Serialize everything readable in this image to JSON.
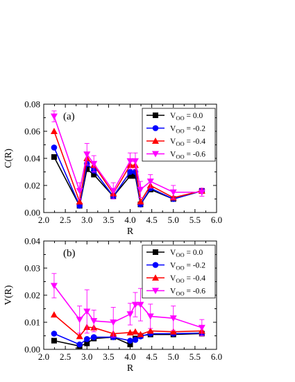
{
  "chart_data": [
    {
      "type": "line",
      "panel": "(a)",
      "xlabel": "R",
      "ylabel": "C(R)",
      "xlim": [
        2.0,
        6.0
      ],
      "ylim": [
        0.0,
        0.08
      ],
      "x_ticks": [
        "2.0",
        "2.5",
        "3.0",
        "3.5",
        "4.0",
        "4.5",
        "5.0",
        "5.5",
        "6.0"
      ],
      "y_ticks": [
        "0.00",
        "0.02",
        "0.04",
        "0.06",
        "0.08"
      ],
      "x": [
        2.24,
        2.83,
        3.0,
        3.16,
        3.61,
        4.0,
        4.12,
        4.24,
        4.47,
        5.0,
        5.66
      ],
      "legend_position": "top-right",
      "series": [
        {
          "name_main": "V",
          "name_sub": "OO",
          "name_rest": " = 0.0",
          "color": "#000000",
          "marker": "square",
          "values": [
            0.041,
            0.005,
            0.032,
            0.028,
            0.012,
            0.027,
            0.027,
            0.006,
            0.017,
            0.01,
            0.016
          ],
          "errors": [
            0,
            0,
            0,
            0,
            0,
            0,
            0,
            0,
            0,
            0,
            0
          ]
        },
        {
          "name_main": "V",
          "name_sub": "OO",
          "name_rest": " = -0.2",
          "color": "#0000ff",
          "marker": "circle",
          "values": [
            0.048,
            0.005,
            0.036,
            0.031,
            0.012,
            0.03,
            0.03,
            0.006,
            0.018,
            0.01,
            0.016
          ],
          "errors": [
            0,
            0,
            0,
            0,
            0,
            0,
            0,
            0,
            0,
            0,
            0
          ]
        },
        {
          "name_main": "V",
          "name_sub": "OO",
          "name_rest": " = -0.4",
          "color": "#ff0000",
          "marker": "triangle-up",
          "values": [
            0.06,
            0.008,
            0.04,
            0.035,
            0.014,
            0.035,
            0.035,
            0.008,
            0.02,
            0.011,
            0.016
          ],
          "errors": [
            0,
            0,
            0,
            0,
            0,
            0,
            0,
            0,
            0,
            0,
            0
          ]
        },
        {
          "name_main": "V",
          "name_sub": "OO",
          "name_rest": " = -0.6",
          "color": "#ff00ff",
          "marker": "triangle-down",
          "values": [
            0.071,
            0.016,
            0.043,
            0.036,
            0.016,
            0.038,
            0.038,
            0.017,
            0.023,
            0.015,
            0.015
          ],
          "errors": [
            0.004,
            0.006,
            0.008,
            0.006,
            0.006,
            0.006,
            0.006,
            0.006,
            0.005,
            0.005,
            0.003
          ]
        }
      ]
    },
    {
      "type": "line",
      "panel": "(b)",
      "xlabel": "R",
      "ylabel": "V(R)",
      "xlim": [
        2.0,
        6.0
      ],
      "ylim": [
        0.0,
        0.04
      ],
      "x_ticks": [
        "2.0",
        "2.5",
        "3.0",
        "3.5",
        "4.0",
        "4.5",
        "5.0",
        "5.5",
        "6.0"
      ],
      "y_ticks": [
        "0.00",
        "0.01",
        "0.02",
        "0.03",
        "0.04"
      ],
      "x": [
        2.24,
        2.83,
        3.0,
        3.16,
        3.61,
        4.0,
        4.12,
        4.24,
        4.47,
        5.0,
        5.66
      ],
      "legend_position": "top-right",
      "series": [
        {
          "name_main": "V",
          "name_sub": "OO",
          "name_rest": " = 0.0",
          "color": "#000000",
          "marker": "square",
          "values": [
            0.0032,
            0.0012,
            0.0022,
            0.004,
            0.0045,
            0.0018,
            0.004,
            0.005,
            0.0055,
            0.0055,
            0.0058
          ],
          "errors": [
            0,
            0,
            0,
            0,
            0,
            0,
            0,
            0,
            0,
            0,
            0
          ]
        },
        {
          "name_main": "V",
          "name_sub": "OO",
          "name_rest": " = -0.2",
          "color": "#0000ff",
          "marker": "circle",
          "values": [
            0.0058,
            0.0018,
            0.0038,
            0.0045,
            0.0045,
            0.0032,
            0.0035,
            0.0048,
            0.0058,
            0.0058,
            0.006
          ],
          "errors": [
            0,
            0,
            0,
            0,
            0,
            0,
            0,
            0,
            0,
            0,
            0
          ]
        },
        {
          "name_main": "V",
          "name_sub": "OO",
          "name_rest": " = -0.4",
          "color": "#ff0000",
          "marker": "triangle-up",
          "values": [
            0.0128,
            0.0048,
            0.0082,
            0.008,
            0.0058,
            0.0062,
            0.0065,
            0.0055,
            0.0068,
            0.0065,
            0.0068
          ],
          "errors": [
            0,
            0,
            0,
            0,
            0,
            0,
            0,
            0,
            0,
            0,
            0
          ]
        },
        {
          "name_main": "V",
          "name_sub": "OO",
          "name_rest": " = -0.6",
          "color": "#ff00ff",
          "marker": "triangle-down",
          "values": [
            0.0235,
            0.011,
            0.014,
            0.0105,
            0.01,
            0.013,
            0.0165,
            0.0165,
            0.0122,
            0.0115,
            0.008
          ],
          "errors": [
            0.0045,
            0.005,
            0.008,
            0.004,
            0.0055,
            0.004,
            0.0045,
            0.006,
            0.0045,
            0.0045,
            0.003
          ]
        }
      ]
    }
  ]
}
